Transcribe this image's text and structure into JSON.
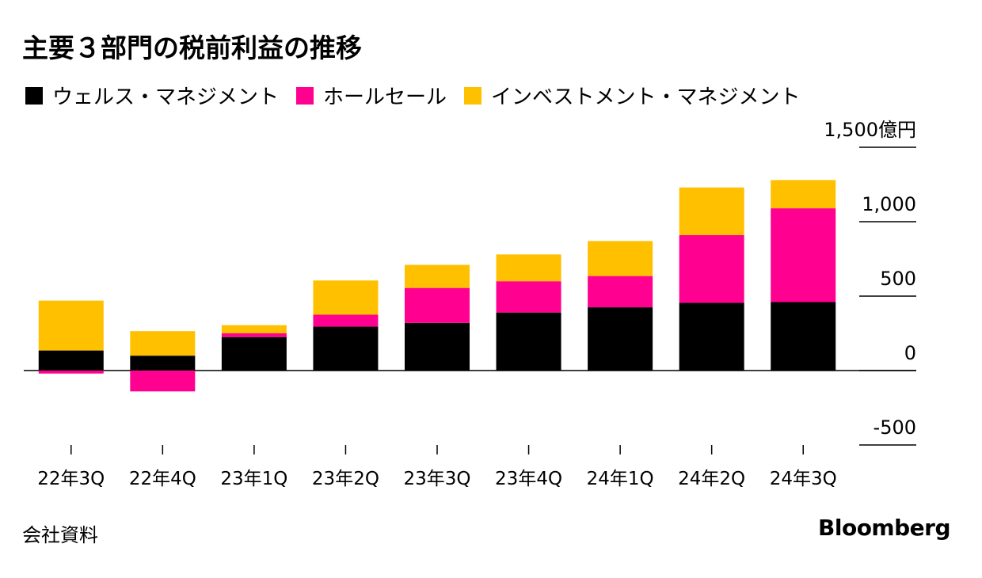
{
  "title": "主要３部門の税前利益の推移",
  "source": "会社資料",
  "brand": "Bloomberg",
  "colors": {
    "wealth": "#000000",
    "wholesale": "#ff0090",
    "investment": "#ffc000",
    "axis": "#000000"
  },
  "chart_data": {
    "type": "bar",
    "stacked": true,
    "title": "主要３部門の税前利益の推移",
    "unit": "億円",
    "categories": [
      "22年3Q",
      "22年4Q",
      "23年1Q",
      "23年2Q",
      "23年3Q",
      "23年4Q",
      "24年1Q",
      "24年2Q",
      "24年3Q"
    ],
    "series": [
      {
        "name": "ウェルス・マネジメント",
        "color": "#000000",
        "values": [
          135,
          100,
          225,
          295,
          320,
          390,
          425,
          455,
          460
        ]
      },
      {
        "name": "ホールセール",
        "color": "#ff0090",
        "values": [
          -20,
          -140,
          25,
          80,
          235,
          210,
          210,
          455,
          630
        ]
      },
      {
        "name": "インベストメント・マネジメント",
        "color": "#ffc000",
        "values": [
          335,
          165,
          55,
          230,
          155,
          180,
          235,
          320,
          190
        ]
      }
    ],
    "ylim": [
      -500,
      1500
    ],
    "yticks": [
      {
        "value": 1500,
        "label": "1,500億円"
      },
      {
        "value": 1000,
        "label": "1,000"
      },
      {
        "value": 500,
        "label": "500"
      },
      {
        "value": 0,
        "label": "0"
      },
      {
        "value": -500,
        "label": "-500"
      }
    ],
    "xlabel": "",
    "ylabel": "",
    "legend_position": "top-left"
  }
}
